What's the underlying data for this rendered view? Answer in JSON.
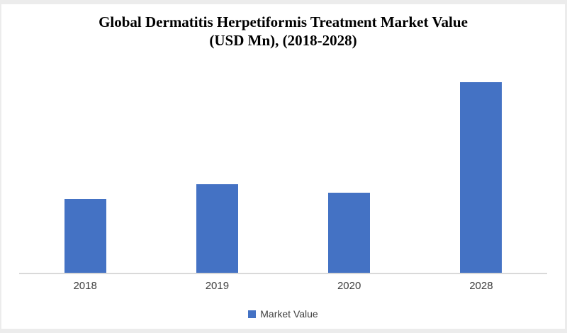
{
  "chart_data": {
    "type": "bar",
    "title": "Global Dermatitis Herpetiformis Treatment Market Value (USD Mn), (2018-2028)",
    "title_line1": "Global Dermatitis Herpetiformis Treatment Market Value",
    "title_line2": "(USD Mn), (2018-2028)",
    "categories": [
      "2018",
      "2019",
      "2020",
      "2028"
    ],
    "series": [
      {
        "name": "Market Value",
        "values": [
          104,
          125,
          113,
          269
        ]
      }
    ],
    "value_note": "y-axis has no tick labels; values are relative units estimated from bar heights",
    "xlabel": "",
    "ylabel": "",
    "ylim": [
      0,
      294
    ],
    "grid": false,
    "legend_position": "bottom",
    "bar_color": "#4472C4",
    "axis_line_color": "#D9D9D9",
    "label_color": "#404040",
    "frame_color": "#ECECEC"
  }
}
